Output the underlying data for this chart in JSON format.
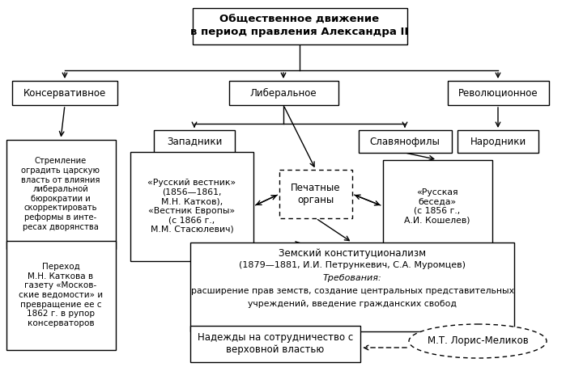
{
  "bg_color": "#ffffff",
  "title_text": "Общественное движение\nв период правления Александра II",
  "conservative_text": "Консервативное",
  "liberal_text": "Либеральное",
  "revolutionary_text": "Революционное",
  "cons_desc_text": "Стремление\nоградить царскую\nвласть от влияния\nлиберальной\nбюрократии и\nскорректировать\nреформы в инте-\nресах дворянства",
  "zapadniki_text": "Западники",
  "slavyanofily_text": "Славянофилы",
  "narodniki_text": "Народники",
  "rus_vestnik_text": "«Русский вестник»\n(1856—1861,\nМ.Н. Катков),\n«Вестник Европы»\n(с 1866 г.,\nМ.М. Стасюлевич)",
  "pechatnye_text": "Печатные\nорганы",
  "rus_beseda_text": "«Русская\nбеседа»\n(с 1856 г.,\nА.И. Кошелев)",
  "katkov_text": "Переход\nМ.Н. Каткова в\nгазету «Москов-\nские ведомости» и\nпревращение ее с\n1862 г. в рупор\nконсерваторов",
  "zemsky_line1": "Земский конституционализм",
  "zemsky_line2": "(1879—1881, И.И. Петрункевич, С.А. Муромцев)",
  "zemsky_line3": "Требования:",
  "zemsky_line4": "расширение прав земств, создание центральных представительных",
  "zemsky_line5": "учреждений, введение гражданских свобод",
  "nadezhdy_text": "Надежды на сотрудничество с\nверховной властью",
  "loris_text": "М.Т. Лорис-Меликов"
}
